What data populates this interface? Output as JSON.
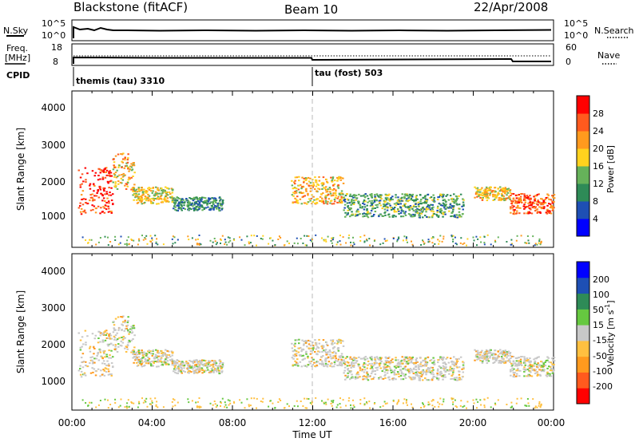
{
  "header": {
    "title": "Blackstone (fitACF)",
    "beam": "Beam 10",
    "date": "22/Apr/2008"
  },
  "top_panels": {
    "nsky_label": "N.Sky",
    "nsky_ticks": [
      "10^5",
      "10^0"
    ],
    "nsearch_label": "N.Search",
    "nsearch_ticks": [
      "10^5",
      "10^0"
    ],
    "freq_label": "Freq.",
    "freq_unit": "[MHz]",
    "freq_ticks": [
      "18",
      "8"
    ],
    "nave_label": "Nave",
    "nave_ticks": [
      "60",
      "0"
    ],
    "cpid_label": "CPID",
    "cpid_1": "themis (tau) 3310",
    "cpid_2": "tau (fost) 503"
  },
  "power_panel": {
    "ylabel": "Slant Range [km]",
    "yticks": [
      "4000",
      "3000",
      "2000",
      "1000"
    ],
    "colorbar_label": "Power [dB]",
    "colorbar_ticks": [
      "28",
      "24",
      "20",
      "16",
      "12",
      "8",
      "4"
    ],
    "colors": [
      "#0000ff",
      "#1e4fb4",
      "#2e8b57",
      "#66b25a",
      "#ffd21e",
      "#ff9a1e",
      "#ff5a1e",
      "#ff0000"
    ]
  },
  "velocity_panel": {
    "ylabel": "Slant Range [km]",
    "yticks": [
      "4000",
      "3000",
      "2000",
      "1000"
    ],
    "colorbar_label": "Velocity [m s",
    "colorbar_exp": "-1",
    "colorbar_close": "]",
    "colorbar_ticks": [
      "200",
      "100",
      "50",
      "15",
      "-15",
      "-50",
      "-100",
      "-200"
    ],
    "colors": [
      "#ff0000",
      "#ff5a1e",
      "#ff9a1e",
      "#ffc040",
      "#c8c8c8",
      "#66c840",
      "#2e8b57",
      "#1e4fb4",
      "#0000ff"
    ]
  },
  "xaxis": {
    "label": "Time UT",
    "ticks": [
      "00:00",
      "04:00",
      "08:00",
      "12:00",
      "16:00",
      "20:00",
      "00:00"
    ]
  },
  "chart_data": {
    "type": "heatmap",
    "title": "Blackstone (fitACF)",
    "xlabel": "Time UT",
    "ylabel": "Slant Range [km]",
    "xlim": [
      0,
      24
    ],
    "ylim": [
      0,
      4600
    ],
    "grid": false,
    "panels": [
      "Power [dB]",
      "Velocity [m s-1]"
    ],
    "echo_regions": [
      {
        "t_start": 0.3,
        "t_end": 2.0,
        "range_low": 1000,
        "range_high": 2400,
        "power_db": 26
      },
      {
        "t_start": 2.0,
        "t_end": 3.1,
        "range_low": 1700,
        "range_high": 2800,
        "power_db": 18
      },
      {
        "t_start": 3.0,
        "t_end": 5.0,
        "range_low": 1300,
        "range_high": 1800,
        "power_db": 16
      },
      {
        "t_start": 5.0,
        "t_end": 7.5,
        "range_low": 1100,
        "range_high": 1500,
        "power_db": 8
      },
      {
        "t_start": 10.9,
        "t_end": 13.5,
        "range_low": 1300,
        "range_high": 2100,
        "power_db": 18
      },
      {
        "t_start": 13.5,
        "t_end": 19.5,
        "range_low": 900,
        "range_high": 1600,
        "power_db": 10
      },
      {
        "t_start": 20.0,
        "t_end": 21.8,
        "range_low": 1400,
        "range_high": 1800,
        "power_db": 18
      },
      {
        "t_start": 21.8,
        "t_end": 24.0,
        "range_low": 1000,
        "range_high": 1600,
        "power_db": 24
      }
    ],
    "cpid_change_time": 12.0
  }
}
